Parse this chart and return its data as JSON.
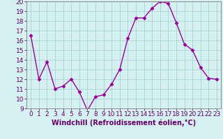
{
  "x": [
    0,
    1,
    2,
    3,
    4,
    5,
    6,
    7,
    8,
    9,
    10,
    11,
    12,
    13,
    14,
    15,
    16,
    17,
    18,
    19,
    20,
    21,
    22,
    23
  ],
  "y": [
    16.5,
    12,
    13.8,
    11,
    11.3,
    12,
    10.7,
    8.8,
    10.2,
    10.4,
    11.5,
    13,
    16.2,
    18.3,
    18.3,
    19.3,
    20,
    19.8,
    17.8,
    15.6,
    15,
    13.2,
    12.1,
    12
  ],
  "line_color": "#990099",
  "marker": "D",
  "markersize": 2.5,
  "linewidth": 1,
  "xlabel": "Windchill (Refroidissement éolien,°C)",
  "xlabel_fontsize": 7,
  "bg_color": "#d4f0f0",
  "grid_color": "#aad4d4",
  "ylim": [
    9,
    20
  ],
  "xlim": [
    -0.5,
    23.5
  ],
  "yticks": [
    9,
    10,
    11,
    12,
    13,
    14,
    15,
    16,
    17,
    18,
    19,
    20
  ],
  "xticks": [
    0,
    1,
    2,
    3,
    4,
    5,
    6,
    7,
    8,
    9,
    10,
    11,
    12,
    13,
    14,
    15,
    16,
    17,
    18,
    19,
    20,
    21,
    22,
    23
  ],
  "tick_fontsize": 6.5
}
